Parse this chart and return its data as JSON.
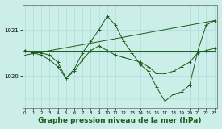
{
  "bg_color": "#cceee8",
  "grid_color": "#aadddd",
  "line_color": "#1a5c1a",
  "xlabel": "Graphe pression niveau de la mer (hPa)",
  "xlabel_fontsize": 6.5,
  "yticks": [
    1020,
    1021
  ],
  "xticks": [
    0,
    1,
    2,
    3,
    4,
    5,
    6,
    7,
    8,
    9,
    10,
    11,
    12,
    13,
    14,
    15,
    16,
    17,
    18,
    19,
    20,
    21,
    22,
    23
  ],
  "ylim": [
    1019.3,
    1021.55
  ],
  "xlim": [
    -0.3,
    23.3
  ],
  "series": [
    {
      "x": [
        0,
        23
      ],
      "y": [
        1020.45,
        1021.2
      ]
    },
    {
      "x": [
        0,
        1,
        2,
        3,
        4,
        5,
        6,
        7,
        8,
        9,
        10,
        14,
        19,
        20,
        23
      ],
      "y": [
        1020.55,
        1020.55,
        1020.55,
        1020.55,
        1020.55,
        1020.55,
        1020.55,
        1020.55,
        1020.55,
        1020.55,
        1020.55,
        1020.55,
        1020.55,
        1020.55,
        1020.55
      ]
    },
    {
      "x": [
        0,
        1,
        2,
        3,
        4,
        5,
        6,
        7,
        8,
        9,
        10,
        11,
        12,
        13,
        14,
        15,
        16,
        17,
        18,
        19,
        20,
        21,
        22,
        23
      ],
      "y": [
        1020.55,
        1020.5,
        1020.5,
        1020.45,
        1020.3,
        1019.95,
        1020.15,
        1020.5,
        1020.75,
        1021.0,
        1021.3,
        1021.1,
        1020.75,
        1020.5,
        1020.25,
        1020.1,
        1019.75,
        1019.45,
        1019.6,
        1019.65,
        1019.8,
        1020.55,
        1021.1,
        1021.2
      ]
    },
    {
      "x": [
        0,
        1,
        2,
        3,
        4,
        5,
        6,
        7,
        8,
        9,
        10,
        11,
        12,
        13,
        14,
        15,
        16,
        17,
        18,
        19,
        20,
        21,
        22,
        23
      ],
      "y": [
        1020.55,
        1020.5,
        1020.45,
        1020.35,
        1020.2,
        1019.95,
        1020.1,
        1020.35,
        1020.55,
        1020.65,
        1020.55,
        1020.45,
        1020.4,
        1020.35,
        1020.3,
        1020.2,
        1020.05,
        1020.05,
        1020.1,
        1020.2,
        1020.3,
        1020.5,
        1020.55,
        1020.6
      ]
    }
  ]
}
